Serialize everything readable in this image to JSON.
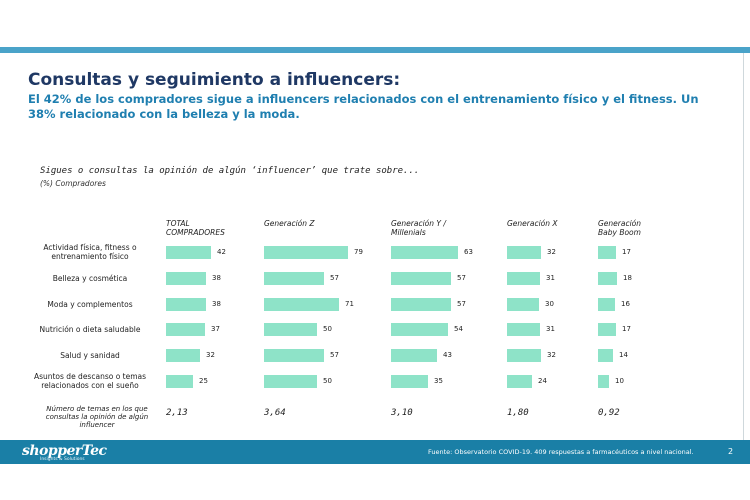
{
  "title": "Consultas y seguimiento a influencers:",
  "subtitle": "El 42% de los compradores sigue a influencers relacionados con el entrenamiento físico y el fitness. Un 38% relacionado con la belleza y la moda.",
  "colors": {
    "bar": "#8ee3c8",
    "title": "#1f3864",
    "subtitle": "#1f7fb0",
    "footer": "#1a7fa6"
  },
  "chart_data": {
    "type": "bar",
    "orientation": "horizontal",
    "title": "Sigues o consultas la opinión de algún ‘influencer’ que trate sobre...",
    "subtitle": "(%) Compradores",
    "categories": [
      "Actividad física, fitness o entrenamiento físico",
      "Belleza y cosmética",
      "Moda y complementos",
      "Nutrición o dieta saludable",
      "Salud y sanidad",
      "Asuntos de descanso o temas relacionados con el sueño"
    ],
    "series": [
      {
        "name": "TOTAL\nCOMPRADORES",
        "values": [
          42,
          38,
          38,
          37,
          32,
          25
        ],
        "summary": "2,13"
      },
      {
        "name": "Generación Z",
        "values": [
          79,
          57,
          71,
          50,
          57,
          50
        ],
        "summary": "3,64"
      },
      {
        "name": "Generación Y /\nMillenials",
        "values": [
          63,
          57,
          57,
          54,
          43,
          35
        ],
        "summary": "3,10"
      },
      {
        "name": "Generación X",
        "values": [
          32,
          31,
          30,
          31,
          32,
          24
        ],
        "summary": "1,80"
      },
      {
        "name": "Generación\nBaby Boom",
        "values": [
          17,
          18,
          16,
          17,
          14,
          10
        ],
        "summary": "0,92"
      }
    ],
    "summary_label": "Número de temas en los que consultas la opinión de algún influencer"
  },
  "footer": {
    "logo": "shopperTec",
    "logo_tagline": "Insights & Solutions",
    "source": "Fuente: Observatorio COVID-19. 409 respuestas a farmacéuticos a nivel nacional.",
    "page": "2"
  }
}
